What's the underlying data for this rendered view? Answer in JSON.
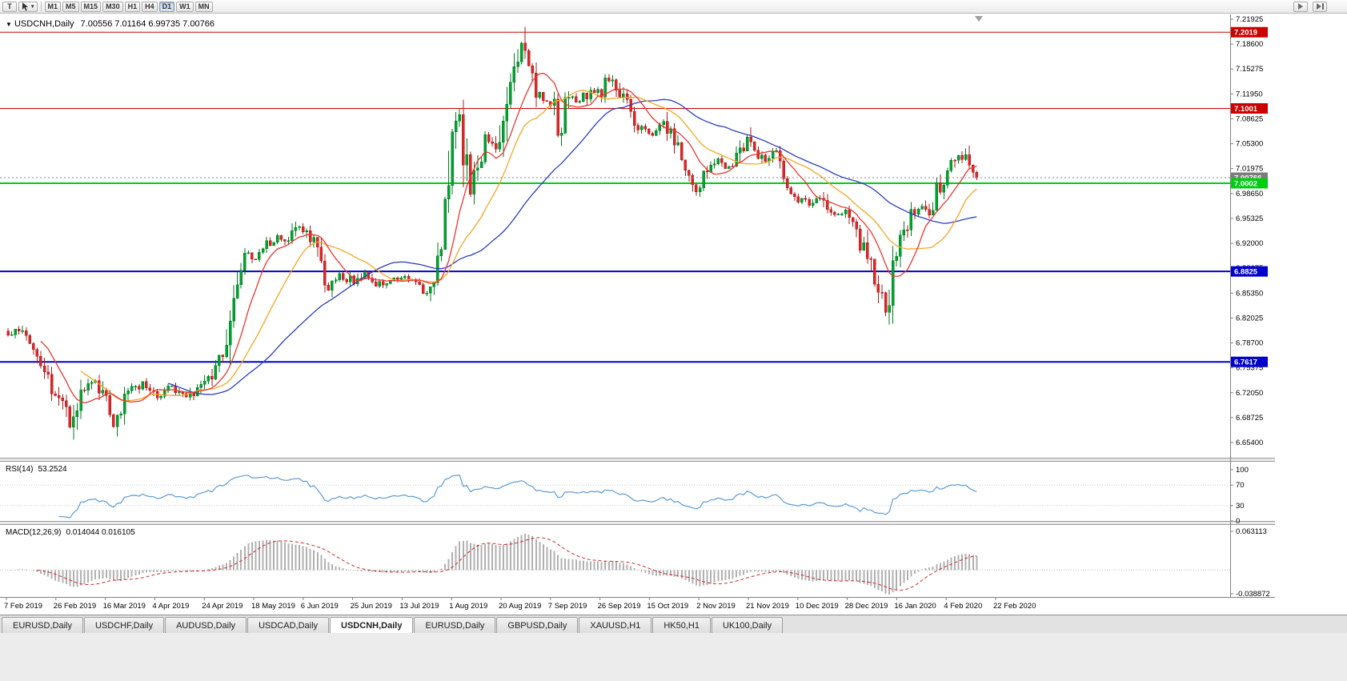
{
  "toolbar": {
    "text_tool": "T",
    "timeframes": [
      "M1",
      "M5",
      "M15",
      "M30",
      "H1",
      "H4",
      "D1",
      "W1",
      "MN"
    ],
    "active_timeframe": "D1"
  },
  "icons": {
    "chart_dropdown": "▼",
    "chevron_down": "▾"
  },
  "chart": {
    "symbol_period": "USDCNH,Daily",
    "ohlc_text": "7.00556 7.01164 6.99735 7.00766"
  },
  "chart_data": {
    "type": "candlestick",
    "symbol": "USDCNH",
    "timeframe": "Daily",
    "ohlc": {
      "open": 7.00556,
      "high": 7.01164,
      "low": 6.99735,
      "close": 7.00766
    },
    "current_price": "7.00766",
    "num_candles": 267,
    "x_labels": [
      "7 Feb 2019",
      "26 Feb 2019",
      "16 Mar 2019",
      "4 Apr 2019",
      "24 Apr 2019",
      "18 May 2019",
      "6 Jun 2019",
      "25 Jun 2019",
      "13 Jul 2019",
      "1 Aug 2019",
      "20 Aug 2019",
      "7 Sep 2019",
      "26 Sep 2019",
      "15 Oct 2019",
      "2 Nov 2019",
      "21 Nov 2019",
      "10 Dec 2019",
      "28 Dec 2019",
      "16 Jan 2020",
      "4 Feb 2020",
      "22 Feb 2020"
    ],
    "y_ticks": [
      "7.21925",
      "7.18600",
      "7.15275",
      "7.11950",
      "7.08625",
      "7.05300",
      "7.01975",
      "6.98650",
      "6.95325",
      "6.92000",
      "6.88675",
      "6.85350",
      "6.82025",
      "6.78700",
      "6.75375",
      "6.72050",
      "6.68725",
      "6.65400"
    ],
    "levels": [
      {
        "price": 7.2019,
        "label": "7.2019",
        "color": "#cc0000",
        "width": 1
      },
      {
        "price": 7.1001,
        "label": "7.1001",
        "color": "#cc0000",
        "width": 1
      },
      {
        "price": 7.0002,
        "label": "7.0002",
        "color": "#00cc12",
        "width": 2
      },
      {
        "price": 6.8825,
        "label": "6.8825",
        "color": "#0000cc",
        "width": 2
      },
      {
        "price": 6.7617,
        "label": "6.7617",
        "color": "#0000cc",
        "width": 2
      }
    ],
    "candle_colors": {
      "up": "#00a32e",
      "up_border": "#007a20",
      "down": "#de2727",
      "down_border": "#a81a1a"
    },
    "moving_averages": [
      {
        "name": "fast",
        "period": 10,
        "color": "#e8372f"
      },
      {
        "name": "medium",
        "period": 21,
        "color": "#f5a623"
      },
      {
        "name": "slow",
        "period": 45,
        "color": "#2b3fbe"
      }
    ],
    "price_path_anchors": [
      [
        0,
        6.795
      ],
      [
        3,
        6.803
      ],
      [
        8,
        6.775
      ],
      [
        12,
        6.725
      ],
      [
        15,
        6.7
      ],
      [
        17,
        6.674
      ],
      [
        20,
        6.718
      ],
      [
        24,
        6.737
      ],
      [
        27,
        6.712
      ],
      [
        29,
        6.678
      ],
      [
        33,
        6.722
      ],
      [
        37,
        6.732
      ],
      [
        41,
        6.714
      ],
      [
        45,
        6.727
      ],
      [
        49,
        6.713
      ],
      [
        53,
        6.728
      ],
      [
        56,
        6.748
      ],
      [
        58,
        6.768
      ],
      [
        60,
        6.8
      ],
      [
        62,
        6.86
      ],
      [
        64,
        6.896
      ],
      [
        66,
        6.905
      ],
      [
        68,
        6.897
      ],
      [
        71,
        6.92
      ],
      [
        74,
        6.93
      ],
      [
        77,
        6.922
      ],
      [
        80,
        6.943
      ],
      [
        83,
        6.928
      ],
      [
        86,
        6.898
      ],
      [
        88,
        6.862
      ],
      [
        91,
        6.88
      ],
      [
        95,
        6.868
      ],
      [
        98,
        6.882
      ],
      [
        101,
        6.864
      ],
      [
        105,
        6.871
      ],
      [
        109,
        6.874
      ],
      [
        112,
        6.868
      ],
      [
        115,
        6.854
      ],
      [
        118,
        6.88
      ],
      [
        120,
        6.96
      ],
      [
        122,
        7.048
      ],
      [
        124,
        7.095
      ],
      [
        126,
        7.02
      ],
      [
        127,
        6.992
      ],
      [
        129,
        7.03
      ],
      [
        131,
        7.058
      ],
      [
        134,
        7.048
      ],
      [
        136,
        7.088
      ],
      [
        138,
        7.135
      ],
      [
        140,
        7.168
      ],
      [
        141,
        7.185
      ],
      [
        143,
        7.15
      ],
      [
        145,
        7.122
      ],
      [
        147,
        7.108
      ],
      [
        149,
        7.112
      ],
      [
        151,
        7.06
      ],
      [
        153,
        7.098
      ],
      [
        155,
        7.118
      ],
      [
        157,
        7.108
      ],
      [
        160,
        7.128
      ],
      [
        163,
        7.118
      ],
      [
        165,
        7.14
      ],
      [
        168,
        7.12
      ],
      [
        171,
        7.092
      ],
      [
        174,
        7.072
      ],
      [
        177,
        7.068
      ],
      [
        180,
        7.08
      ],
      [
        182,
        7.062
      ],
      [
        185,
        7.032
      ],
      [
        187,
        7.002
      ],
      [
        189,
        6.99
      ],
      [
        192,
        7.018
      ],
      [
        195,
        7.03
      ],
      [
        198,
        7.022
      ],
      [
        200,
        7.032
      ],
      [
        203,
        7.062
      ],
      [
        205,
        7.04
      ],
      [
        208,
        7.03
      ],
      [
        211,
        7.042
      ],
      [
        213,
        6.996
      ],
      [
        217,
        6.98
      ],
      [
        220,
        6.972
      ],
      [
        223,
        6.98
      ],
      [
        226,
        6.962
      ],
      [
        230,
        6.96
      ],
      [
        233,
        6.938
      ],
      [
        236,
        6.898
      ],
      [
        239,
        6.862
      ],
      [
        241,
        6.832
      ],
      [
        243,
        6.885
      ],
      [
        245,
        6.93
      ],
      [
        248,
        6.958
      ],
      [
        251,
        6.968
      ],
      [
        253,
        6.958
      ],
      [
        255,
        6.988
      ],
      [
        257,
        7.008
      ],
      [
        259,
        7.022
      ],
      [
        261,
        7.042
      ],
      [
        263,
        7.03
      ],
      [
        265,
        7.012
      ],
      [
        266,
        7.008
      ]
    ],
    "rsi": {
      "label": "RSI(14)",
      "value": "53.2524",
      "period": 14,
      "color": "#5b9bd5",
      "ticks": [
        "100",
        "70",
        "30",
        "0"
      ],
      "levels": [
        70,
        30
      ]
    },
    "macd": {
      "label": "MACD(12,26,9)",
      "values": "0.014044 0.016105",
      "fast": 12,
      "slow": 26,
      "signal": 9,
      "ticks": [
        "0.063113",
        "-0.038872"
      ],
      "histogram_color": "#b0b0b0",
      "signal_color": "#d02828"
    }
  },
  "tabs": {
    "items": [
      "EURUSD,Daily",
      "USDCHF,Daily",
      "AUDUSD,Daily",
      "USDCAD,Daily",
      "USDCNH,Daily",
      "EURUSD,Daily",
      "GBPUSD,Daily",
      "XAUUSD,H1",
      "HK50,H1",
      "UK100,Daily"
    ],
    "active_index": 4
  }
}
